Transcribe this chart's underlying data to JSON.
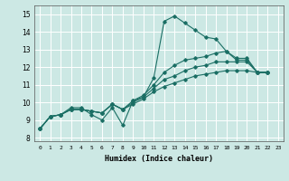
{
  "xlabel": "Humidex (Indice chaleur)",
  "bg_color": "#cce8e4",
  "line_color": "#1a6e64",
  "grid_color": "#ffffff",
  "xlim": [
    -0.5,
    23.5
  ],
  "ylim": [
    7.8,
    15.5
  ],
  "yticks": [
    8,
    9,
    10,
    11,
    12,
    13,
    14,
    15
  ],
  "xtick_labels": [
    "0",
    "1",
    "2",
    "3",
    "4",
    "5",
    "6",
    "7",
    "8",
    "9",
    "10",
    "11",
    "12",
    "13",
    "14",
    "15",
    "16",
    "17",
    "18",
    "19",
    "20",
    "21",
    "22",
    "23"
  ],
  "series": [
    [
      8.5,
      9.2,
      9.3,
      9.7,
      9.7,
      9.3,
      9.0,
      9.7,
      8.7,
      10.1,
      10.3,
      11.4,
      14.6,
      14.9,
      14.5,
      14.1,
      13.7,
      13.6,
      12.9,
      12.5,
      12.5,
      11.7,
      11.7
    ],
    [
      8.5,
      9.2,
      9.3,
      9.6,
      9.6,
      9.5,
      9.4,
      9.9,
      9.6,
      10.1,
      10.4,
      11.0,
      11.7,
      12.1,
      12.4,
      12.5,
      12.6,
      12.8,
      12.9,
      12.4,
      12.4,
      11.7,
      11.7
    ],
    [
      8.5,
      9.2,
      9.3,
      9.6,
      9.6,
      9.5,
      9.4,
      9.9,
      9.6,
      10.0,
      10.3,
      10.8,
      11.3,
      11.5,
      11.8,
      12.0,
      12.1,
      12.3,
      12.3,
      12.3,
      12.3,
      11.7,
      11.7
    ],
    [
      8.5,
      9.2,
      9.3,
      9.6,
      9.6,
      9.5,
      9.4,
      9.9,
      9.6,
      9.9,
      10.2,
      10.6,
      10.9,
      11.1,
      11.3,
      11.5,
      11.6,
      11.7,
      11.8,
      11.8,
      11.8,
      11.7,
      11.7
    ]
  ],
  "x_values": [
    0,
    1,
    2,
    3,
    4,
    5,
    6,
    7,
    8,
    9,
    10,
    11,
    12,
    13,
    14,
    15,
    16,
    17,
    18,
    19,
    20,
    21,
    22
  ]
}
